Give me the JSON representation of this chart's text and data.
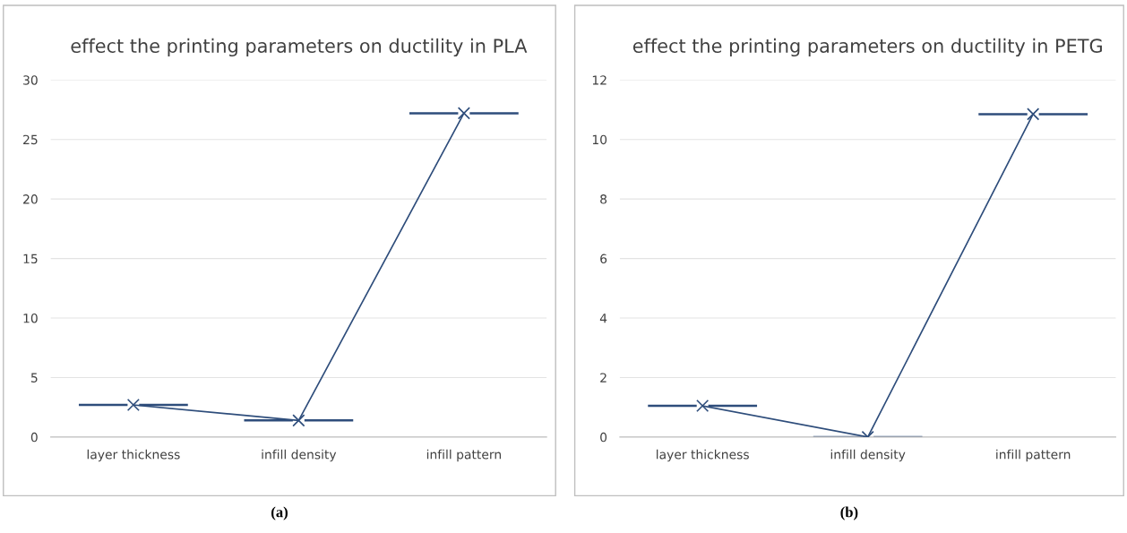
{
  "chart_data": [
    {
      "type": "line",
      "title": "effect the printing parameters on ductility in PLA",
      "categories": [
        "layer thickness",
        "infill density",
        "infill pattern"
      ],
      "series": [
        {
          "color": "#2e4d7b",
          "values": [
            2.7,
            1.4,
            27.2
          ]
        }
      ],
      "ylim": [
        0,
        30
      ],
      "yticks": [
        0,
        5,
        10,
        15,
        20,
        25,
        30
      ],
      "grid": "y",
      "marker": "cross",
      "line_style": "solid",
      "annotations": [
        "(a)"
      ]
    },
    {
      "type": "line",
      "title": "effect the printing parameters on ductility in PETG",
      "categories": [
        "layer thickness",
        "infill density",
        "infill pattern"
      ],
      "series": [
        {
          "color": "#2e4d7b",
          "values": [
            1.05,
            0,
            10.85
          ]
        }
      ],
      "ylim": [
        0,
        12
      ],
      "yticks": [
        0,
        2,
        4,
        6,
        8,
        10,
        12
      ],
      "grid": "y",
      "marker": "cross",
      "line_style": "solid",
      "annotations": [
        "(b)"
      ]
    }
  ]
}
